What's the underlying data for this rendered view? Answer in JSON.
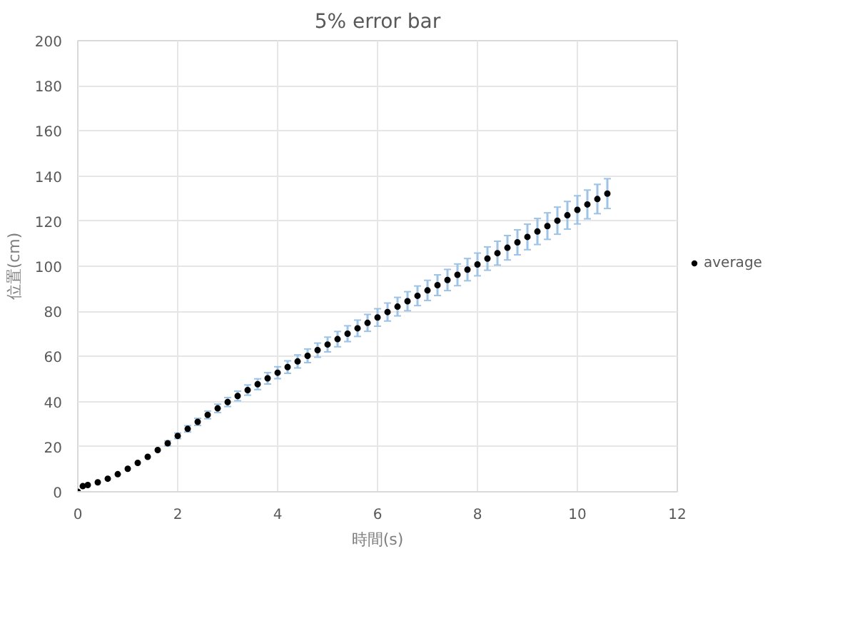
{
  "chart_data": {
    "type": "scatter",
    "title": "5% error bar",
    "xlabel": "時間(s)",
    "ylabel": "位置(cm)",
    "x": [
      0,
      0.1,
      0.2,
      0.4,
      0.6,
      0.8,
      1.0,
      1.2,
      1.4,
      1.6,
      1.8,
      2.0,
      2.2,
      2.4,
      2.6,
      2.8,
      3.0,
      3.2,
      3.4,
      3.6,
      3.8,
      4.0,
      4.2,
      4.4,
      4.6,
      4.8,
      5.0,
      5.2,
      5.4,
      5.6,
      5.8,
      6.0,
      6.2,
      6.4,
      6.6,
      6.8,
      7.0,
      7.2,
      7.4,
      7.6,
      7.8,
      8.0,
      8.2,
      8.4,
      8.6,
      8.8,
      9.0,
      9.2,
      9.4,
      9.6,
      9.8,
      10.0,
      10.2,
      10.4,
      10.6
    ],
    "series": [
      {
        "name": "average",
        "color": "#000000",
        "values": [
          0,
          2.5,
          3.0,
          4.2,
          5.8,
          7.8,
          10.2,
          12.8,
          15.5,
          18.5,
          21.5,
          24.8,
          27.9,
          31.0,
          34.1,
          37.0,
          39.8,
          42.5,
          45.1,
          47.7,
          50.3,
          52.8,
          55.3,
          57.8,
          60.3,
          62.8,
          65.3,
          67.7,
          70.1,
          72.5,
          74.9,
          77.3,
          79.7,
          82.1,
          84.5,
          86.9,
          89.3,
          91.6,
          93.9,
          96.2,
          98.5,
          100.8,
          103.4,
          105.8,
          108.2,
          110.6,
          113.0,
          115.4,
          117.8,
          120.2,
          122.6,
          125.0,
          127.4,
          129.8,
          132.2
        ],
        "errors": [
          null,
          null,
          null,
          null,
          null,
          null,
          null,
          null,
          null,
          null,
          1.08,
          1.24,
          1.4,
          1.55,
          1.71,
          1.85,
          1.99,
          2.13,
          2.26,
          2.39,
          2.52,
          2.64,
          2.77,
          2.89,
          3.02,
          3.14,
          3.27,
          3.39,
          3.51,
          3.63,
          3.75,
          3.87,
          3.99,
          4.11,
          4.23,
          4.35,
          4.47,
          4.58,
          4.7,
          4.81,
          4.93,
          5.04,
          5.17,
          5.29,
          5.41,
          5.53,
          5.65,
          5.77,
          5.89,
          6.01,
          6.13,
          6.25,
          6.37,
          6.49,
          6.61
        ]
      }
    ],
    "xlim": [
      0,
      12
    ],
    "xticks": [
      0,
      2,
      4,
      6,
      8,
      10,
      12
    ],
    "ylim": [
      0,
      200
    ],
    "yticks": [
      0,
      20,
      40,
      60,
      80,
      100,
      120,
      140,
      160,
      180,
      200
    ],
    "grid": true,
    "legend": "right",
    "marker": "circle"
  }
}
